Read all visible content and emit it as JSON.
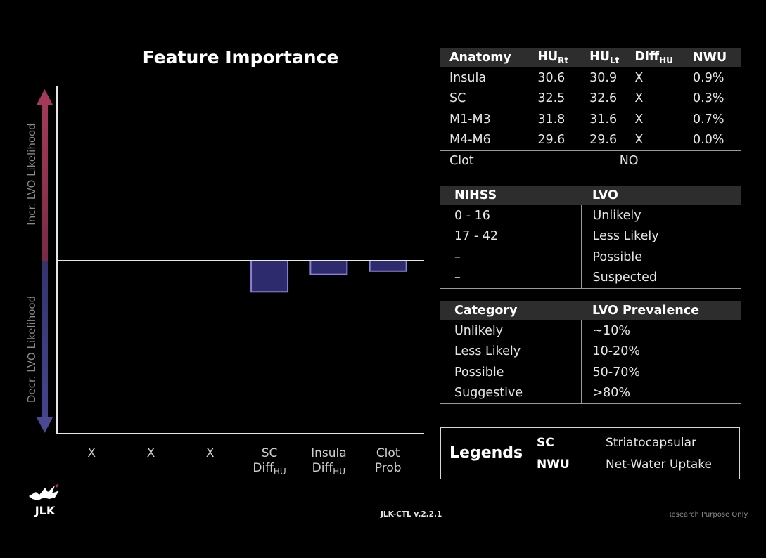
{
  "chart_data": {
    "type": "bar",
    "title": "Feature Importance",
    "ylabel_top": "Incr. LVO Likelihood",
    "ylabel_bottom": "Decr. LVO Likelihood",
    "categories": [
      {
        "main": "X"
      },
      {
        "main": "X"
      },
      {
        "main": "X"
      },
      {
        "main": "SC",
        "line2": "Diff",
        "line2_sub": "HU"
      },
      {
        "main": "Insula",
        "line2": "Diff",
        "line2_sub": "HU"
      },
      {
        "main": "Clot",
        "line2": "Prob"
      }
    ],
    "values": [
      0,
      0,
      0,
      -0.18,
      -0.08,
      -0.06
    ],
    "ylim": [
      -1,
      1
    ],
    "grid": false,
    "colors": {
      "bar_fill": "#2e2a6e",
      "bar_stroke": "#8a80d6",
      "arrow_up": "#8a2f4a",
      "arrow_down": "#3b3a7a"
    }
  },
  "anatomy_table": {
    "headers": [
      {
        "text": "Anatomy"
      },
      {
        "text": "HU",
        "sub": "Rt"
      },
      {
        "text": "HU",
        "sub": "Lt"
      },
      {
        "text": "Diff",
        "sub": "HU"
      },
      {
        "text": "NWU"
      }
    ],
    "rows": [
      [
        "Insula",
        "30.6",
        "30.9",
        "X",
        "0.9%"
      ],
      [
        "SC",
        "32.5",
        "32.6",
        "X",
        "0.3%"
      ],
      [
        "M1-M3",
        "31.8",
        "31.6",
        "X",
        "0.7%"
      ],
      [
        "M4-M6",
        "29.6",
        "29.6",
        "X",
        "0.0%"
      ]
    ],
    "clot_label": "Clot",
    "clot_value": "NO"
  },
  "nihss_table": {
    "headers": [
      "NIHSS",
      "LVO"
    ],
    "rows": [
      [
        "0 - 16",
        "Unlikely"
      ],
      [
        "17 - 42",
        "Less Likely"
      ],
      [
        "–",
        "Possible"
      ],
      [
        "–",
        "Suspected"
      ]
    ]
  },
  "prevalence_table": {
    "headers": [
      "Category",
      "LVO Prevalence"
    ],
    "rows": [
      [
        "Unlikely",
        "~10%"
      ],
      [
        "Less Likely",
        "10-20%"
      ],
      [
        "Possible",
        "50-70%"
      ],
      [
        "Suggestive",
        ">80%"
      ]
    ]
  },
  "legend": {
    "title": "Legends",
    "items": [
      {
        "abbr": "SC",
        "desc": "Striatocapsular"
      },
      {
        "abbr": "NWU",
        "desc": "Net-Water Uptake"
      }
    ]
  },
  "logo_text": "JLK",
  "version": "JLK-CTL v.2.2.1",
  "footer_note": "Research Purpose Only"
}
